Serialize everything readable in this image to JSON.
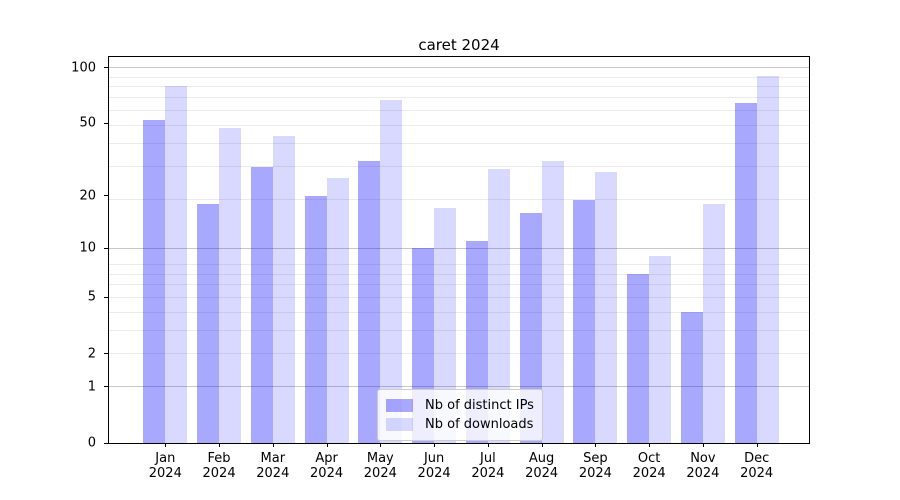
{
  "chart_data": {
    "type": "bar",
    "title": "caret 2024",
    "categories": [
      "Jan",
      "Feb",
      "Mar",
      "Apr",
      "May",
      "Jun",
      "Jul",
      "Aug",
      "Sep",
      "Oct",
      "Nov",
      "Dec"
    ],
    "x_year_label": "2024",
    "series": [
      {
        "name": "Nb of distinct IPs",
        "color": "#0000ff",
        "alpha": 0.34,
        "values": [
          52,
          18,
          29,
          20,
          31,
          10,
          11,
          16,
          19,
          7,
          4,
          65
        ]
      },
      {
        "name": "Nb of downloads",
        "color": "#0000ff",
        "alpha": 0.15,
        "values": [
          80,
          47,
          43,
          25,
          67,
          17,
          28,
          31,
          27,
          9,
          18,
          90
        ]
      }
    ],
    "yscale": "log1p",
    "ylim": [
      0,
      114.6
    ],
    "yticks": [
      0,
      1,
      2,
      5,
      10,
      20,
      50,
      100
    ],
    "grid": true,
    "gridlines": {
      "major": [
        1,
        10,
        100
      ],
      "minor": [
        2,
        3,
        4,
        5,
        6,
        7,
        8,
        19,
        29,
        39,
        49,
        59,
        69,
        79,
        89
      ],
      "major_color": "#c8c8c8",
      "minor_color": "#ebebeb"
    },
    "legend_position": "lower center"
  }
}
